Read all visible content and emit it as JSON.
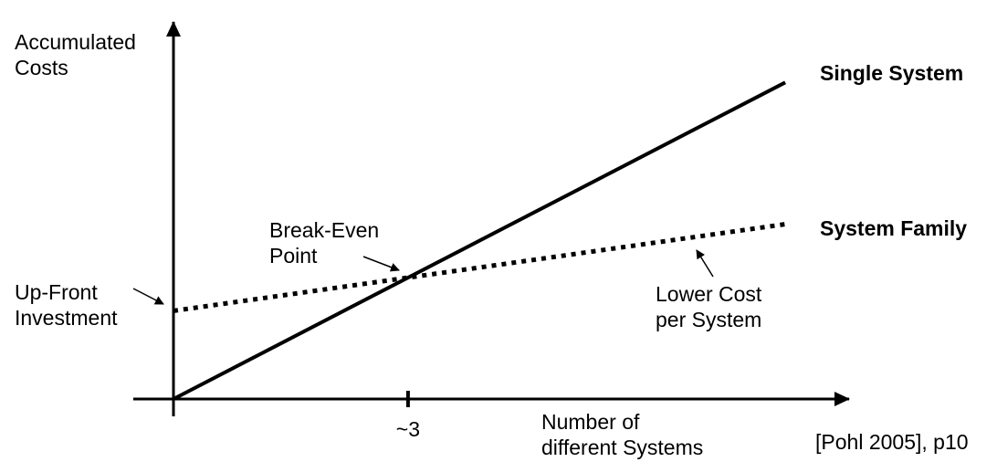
{
  "chart_data": {
    "type": "line",
    "title": "",
    "xlabel": "Number of\ndifferent Systems",
    "ylabel": "Accumulated\nCosts",
    "xlim": [
      0,
      7.2
    ],
    "ylim": [
      0,
      4.6
    ],
    "grid": false,
    "legend_position": "line-end-labels",
    "x_ticks": [
      {
        "value": 2.45,
        "label": "~3"
      }
    ],
    "series": [
      {
        "name": "Single System",
        "style": "solid",
        "points": [
          [
            0,
            0
          ],
          [
            6.39,
            3.77
          ]
        ]
      },
      {
        "name": "System Family",
        "style": "dotted",
        "points": [
          [
            0,
            1.05
          ],
          [
            6.44,
            2.09
          ]
        ]
      }
    ],
    "break_even": {
      "x": 2.45,
      "y": 1.45,
      "x_label": "~3"
    },
    "annotations": [
      {
        "text": "Break-Even\nPoint",
        "target": "intersection-of-lines"
      },
      {
        "text": "Up-Front\nInvestment",
        "target": "system-family-y-intercept"
      },
      {
        "text": "Lower Cost\nper System",
        "target": "system-family-slope"
      }
    ]
  },
  "citation": "[Pohl 2005], p10"
}
